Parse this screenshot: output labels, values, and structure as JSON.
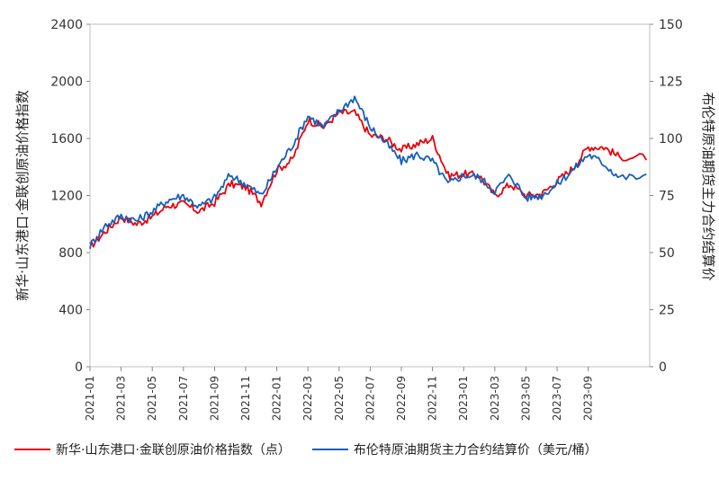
{
  "chart_data": {
    "type": "line",
    "y_left": {
      "label": "新华·山东港口·金联创原油价格指数",
      "ylim": [
        0,
        2400
      ],
      "ticks": [
        0,
        400,
        800,
        1200,
        1600,
        2000,
        2400
      ]
    },
    "y_right": {
      "label": "布伦特原油期货主力合约结算价",
      "ylim": [
        0,
        150
      ],
      "ticks": [
        0,
        25,
        50,
        75,
        100,
        125,
        150
      ]
    },
    "x_ticks": [
      "2021-01",
      "2021-03",
      "2021-05",
      "2021-07",
      "2021-09",
      "2021-11",
      "2022-01",
      "2022-03",
      "2022-05",
      "2022-07",
      "2022-09",
      "2022-11",
      "2023-01",
      "2023-03",
      "2023-05",
      "2023-07",
      "2023-09"
    ],
    "x_range": [
      "2021-01",
      "2023-12"
    ],
    "grid": false,
    "legend_position": "bottom",
    "series": [
      {
        "name": "新华·山东港口·金联创原油价格指数（点）",
        "color": "#e8000b",
        "axis": "left",
        "x": [
          "2021-01",
          "2021-02",
          "2021-03",
          "2021-04",
          "2021-05",
          "2021-06",
          "2021-07",
          "2021-08",
          "2021-09",
          "2021-10",
          "2021-11",
          "2021-12",
          "2022-01",
          "2022-02",
          "2022-03",
          "2022-04",
          "2022-05",
          "2022-06",
          "2022-07",
          "2022-08",
          "2022-09",
          "2022-10",
          "2022-11",
          "2022-12",
          "2023-01",
          "2023-02",
          "2023-03",
          "2023-04",
          "2023-05",
          "2023-06",
          "2023-07",
          "2023-08",
          "2023-09",
          "2023-10",
          "2023-11"
        ],
        "values": [
          840,
          950,
          1050,
          1000,
          1050,
          1130,
          1140,
          1090,
          1150,
          1280,
          1260,
          1150,
          1380,
          1450,
          1730,
          1680,
          1780,
          1780,
          1620,
          1600,
          1520,
          1560,
          1600,
          1340,
          1350,
          1340,
          1200,
          1280,
          1200,
          1210,
          1300,
          1390,
          1540,
          1540,
          1470
        ]
      },
      {
        "name": "布伦特原油期货主力合约结算价（美元/桶）",
        "color": "#1560bd",
        "axis": "right",
        "x": [
          "2021-01",
          "2021-02",
          "2021-03",
          "2021-04",
          "2021-05",
          "2021-06",
          "2021-07",
          "2021-08",
          "2021-09",
          "2021-10",
          "2021-11",
          "2021-12",
          "2022-01",
          "2022-02",
          "2022-03",
          "2022-04",
          "2022-05",
          "2022-06",
          "2022-07",
          "2022-08",
          "2022-09",
          "2022-10",
          "2022-11",
          "2022-12",
          "2023-01",
          "2023-02",
          "2023-03",
          "2023-04",
          "2023-05",
          "2023-06",
          "2023-07",
          "2023-08",
          "2023-09",
          "2023-10",
          "2023-11"
        ],
        "values": [
          53,
          62,
          66,
          64,
          68,
          73,
          75,
          70,
          74,
          84,
          80,
          75,
          87,
          97,
          110,
          105,
          112,
          118,
          105,
          98,
          90,
          93,
          90,
          80,
          84,
          83,
          77,
          84,
          74,
          75,
          80,
          86,
          93,
          89,
          83
        ]
      }
    ]
  }
}
